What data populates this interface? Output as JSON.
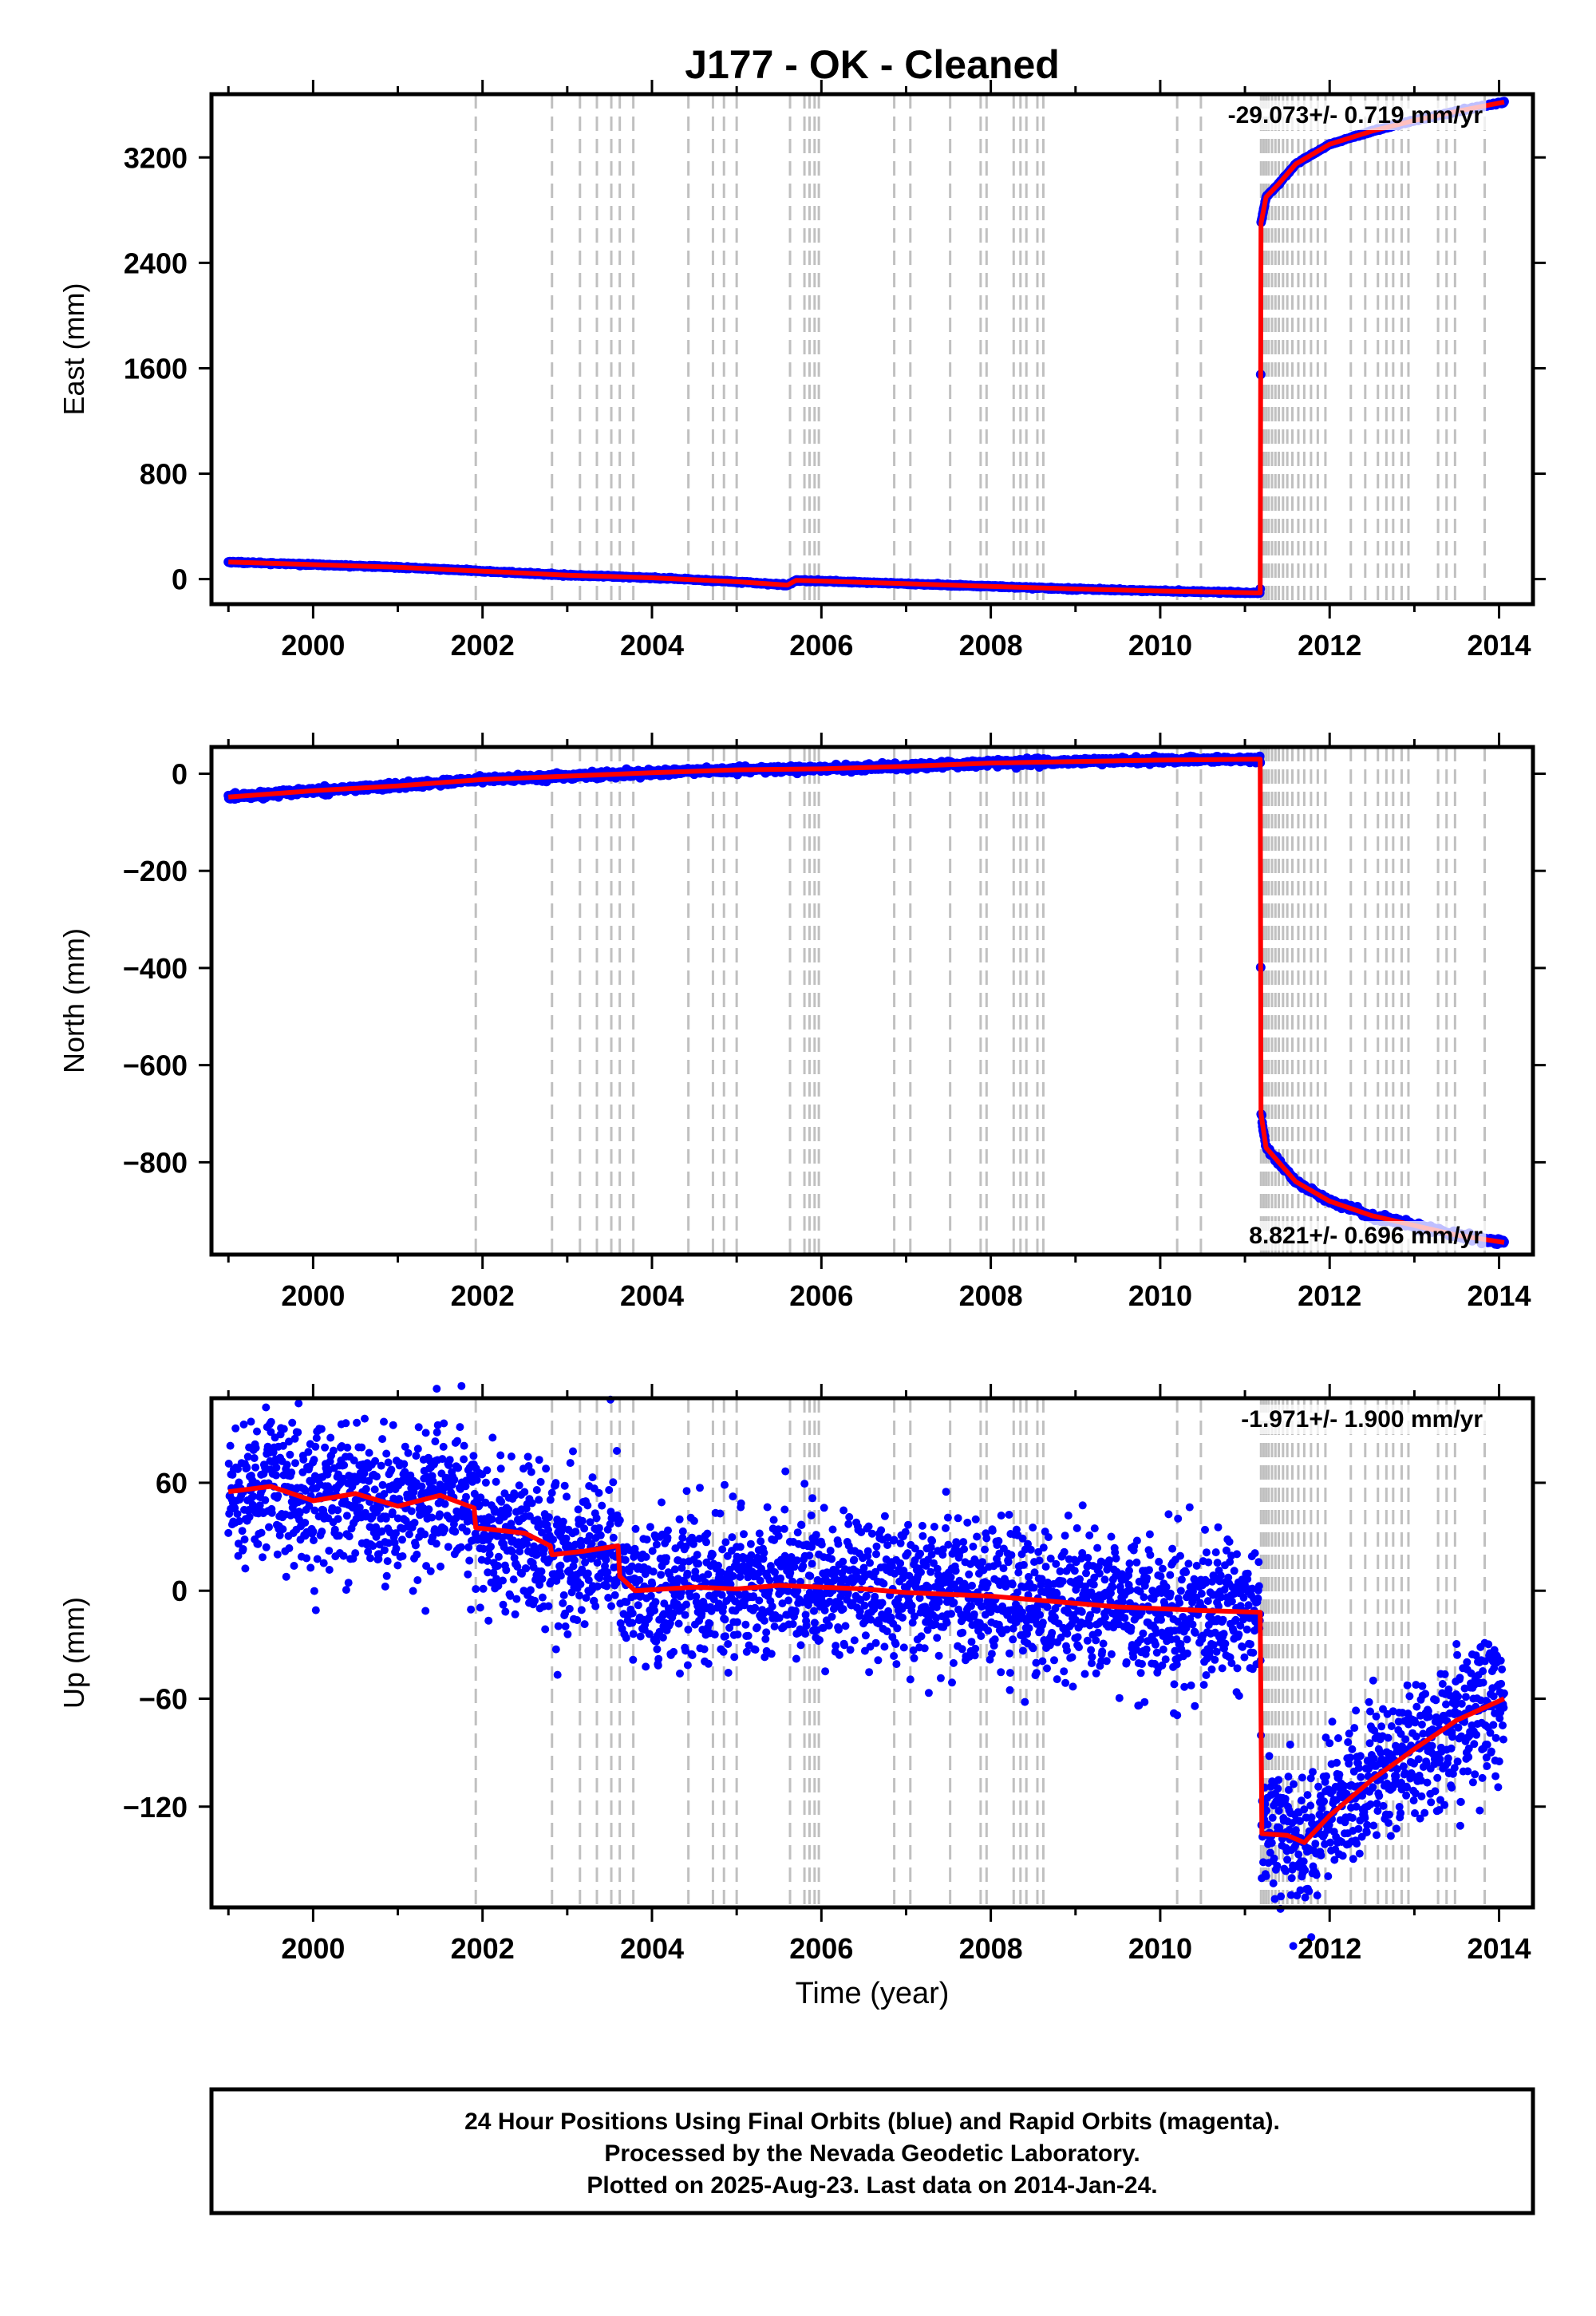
{
  "title": "J177  - OK - Cleaned",
  "xlabel": "Time (year)",
  "footer": [
    "24 Hour Positions Using Final Orbits (blue) and Rapid Orbits (magenta).",
    "Processed by the Nevada Geodetic Laboratory.",
    "Plotted on 2025-Aug-23. Last data on 2014-Jan-24."
  ],
  "colors": {
    "data": "#0000ff",
    "model": "#ff0000",
    "steps": "#c0c0c0"
  },
  "chart_data": [
    {
      "type": "scatter",
      "id": "east",
      "ylabel": "East (mm)",
      "rate_text": "-29.073+/- 0.719 mm/yr",
      "xlim": [
        1998.8,
        2014.4
      ],
      "ylim": [
        -190,
        3680
      ],
      "yticks": [
        0,
        800,
        1600,
        2400,
        3200
      ],
      "xticks": [
        2000,
        2002,
        2004,
        2006,
        2008,
        2010,
        2012,
        2014
      ],
      "scatter": 3,
      "model": [
        [
          1999.0,
          130
        ],
        [
          2000.0,
          110
        ],
        [
          2001.0,
          90
        ],
        [
          2002.0,
          60
        ],
        [
          2003.0,
          30
        ],
        [
          2004.0,
          10
        ],
        [
          2005.0,
          -20
        ],
        [
          2005.6,
          -45
        ],
        [
          2005.7,
          -10
        ],
        [
          2006.0,
          -15
        ],
        [
          2007.0,
          -35
        ],
        [
          2008.0,
          -55
        ],
        [
          2009.0,
          -75
        ],
        [
          2010.0,
          -90
        ],
        [
          2011.18,
          -105
        ],
        [
          2011.19,
          2700
        ],
        [
          2011.25,
          2900
        ],
        [
          2011.4,
          3000
        ],
        [
          2011.6,
          3150
        ],
        [
          2012.0,
          3300
        ],
        [
          2012.5,
          3400
        ],
        [
          2013.0,
          3480
        ],
        [
          2013.5,
          3550
        ],
        [
          2014.06,
          3620
        ]
      ]
    },
    {
      "type": "scatter",
      "id": "north",
      "ylabel": "North (mm)",
      "rate_text": "8.821+/- 0.696 mm/yr",
      "xlim": [
        1998.8,
        2014.4
      ],
      "ylim": [
        -990,
        55
      ],
      "yticks": [
        -800,
        -600,
        -400,
        -200,
        0
      ],
      "xticks": [
        2000,
        2002,
        2004,
        2006,
        2008,
        2010,
        2012,
        2014
      ],
      "scatter": 3,
      "model": [
        [
          1999.0,
          -48
        ],
        [
          2000.0,
          -35
        ],
        [
          2001.0,
          -25
        ],
        [
          2002.0,
          -12
        ],
        [
          2003.0,
          -5
        ],
        [
          2004.0,
          2
        ],
        [
          2005.0,
          8
        ],
        [
          2006.0,
          10
        ],
        [
          2007.0,
          15
        ],
        [
          2008.0,
          22
        ],
        [
          2009.0,
          25
        ],
        [
          2010.0,
          28
        ],
        [
          2011.18,
          30
        ],
        [
          2011.19,
          -700
        ],
        [
          2011.25,
          -770
        ],
        [
          2011.4,
          -800
        ],
        [
          2011.6,
          -840
        ],
        [
          2012.0,
          -880
        ],
        [
          2012.5,
          -910
        ],
        [
          2013.0,
          -930
        ],
        [
          2013.5,
          -950
        ],
        [
          2014.06,
          -965
        ]
      ]
    },
    {
      "type": "scatter",
      "id": "up",
      "ylabel": "Up (mm)",
      "rate_text": "-1.971+/- 1.900 mm/yr",
      "xlim": [
        1998.8,
        2014.4
      ],
      "ylim": [
        -176,
        107
      ],
      "yticks": [
        -120,
        -60,
        0,
        60
      ],
      "xticks": [
        2000,
        2002,
        2004,
        2006,
        2008,
        2010,
        2012,
        2014
      ],
      "scatter": 20,
      "model": [
        [
          1999.0,
          55
        ],
        [
          1999.5,
          58
        ],
        [
          2000.0,
          50
        ],
        [
          2000.5,
          54
        ],
        [
          2001.0,
          47
        ],
        [
          2001.5,
          53
        ],
        [
          2001.9,
          46
        ],
        [
          2001.92,
          35
        ],
        [
          2002.5,
          32
        ],
        [
          2002.8,
          25
        ],
        [
          2002.82,
          20
        ],
        [
          2003.2,
          22
        ],
        [
          2003.6,
          25
        ],
        [
          2003.62,
          8
        ],
        [
          2003.8,
          0
        ],
        [
          2004.5,
          2
        ],
        [
          2005.0,
          1
        ],
        [
          2005.5,
          3
        ],
        [
          2006.0,
          2
        ],
        [
          2006.5,
          1
        ],
        [
          2007.0,
          -1
        ],
        [
          2007.5,
          -2
        ],
        [
          2008.0,
          -3
        ],
        [
          2008.5,
          -5
        ],
        [
          2009.0,
          -7
        ],
        [
          2009.5,
          -9
        ],
        [
          2010.0,
          -10
        ],
        [
          2010.5,
          -11
        ],
        [
          2011.18,
          -12
        ],
        [
          2011.2,
          -135
        ],
        [
          2011.5,
          -136
        ],
        [
          2011.7,
          -140
        ],
        [
          2012.0,
          -125
        ],
        [
          2012.5,
          -105
        ],
        [
          2013.0,
          -88
        ],
        [
          2013.5,
          -72
        ],
        [
          2014.06,
          -60
        ]
      ]
    }
  ],
  "step_epochs": [
    2001.92,
    2002.82,
    2003.15,
    2003.35,
    2003.52,
    2003.62,
    2003.78,
    2004.43,
    2004.72,
    2004.85,
    2005.0,
    2005.63,
    2005.8,
    2005.86,
    2005.92,
    2005.97,
    2006.86,
    2007.05,
    2007.52,
    2007.88,
    2007.95,
    2008.27,
    2008.35,
    2008.42,
    2008.55,
    2008.62,
    2010.2,
    2010.48,
    2011.19,
    2011.22,
    2011.25,
    2011.28,
    2011.32,
    2011.36,
    2011.4,
    2011.45,
    2011.5,
    2011.56,
    2011.63,
    2011.7,
    2011.78,
    2011.86,
    2011.95,
    2012.25,
    2012.42,
    2012.57,
    2012.67,
    2012.75,
    2012.85,
    2012.93,
    2013.28,
    2013.38,
    2013.48,
    2013.83
  ]
}
